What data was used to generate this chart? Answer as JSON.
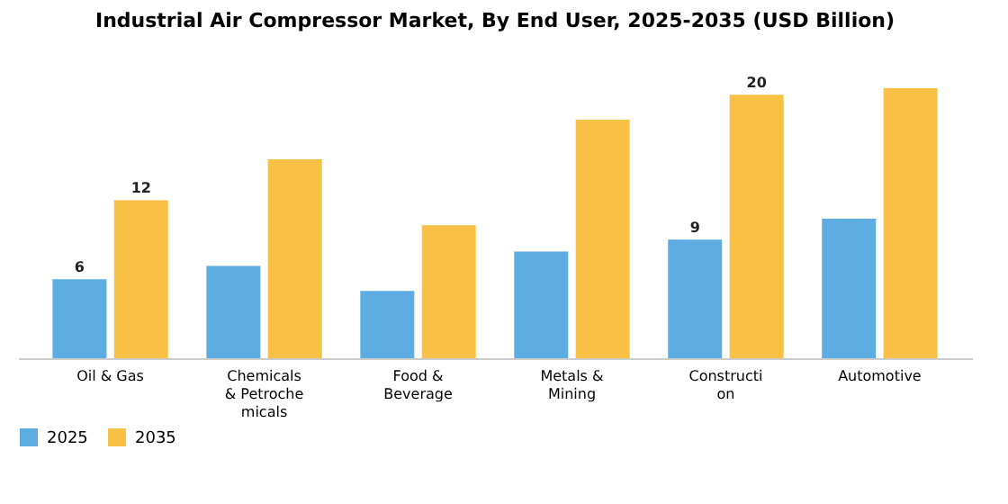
{
  "chart_data": {
    "type": "bar",
    "title": "Industrial Air Compressor Market, By End User, 2025-2035 (USD Billion)",
    "categories": [
      "Oil & Gas",
      "Chemicals & Petrochemicals",
      "Food & Beverage",
      "Metals & Mining",
      "Construction",
      "Automotive"
    ],
    "series": [
      {
        "name": "2025",
        "color": "#5dade2",
        "values": [
          6,
          7.0,
          5.1,
          8.1,
          9,
          10.6
        ],
        "value_labels": [
          "6",
          null,
          null,
          null,
          "9",
          null
        ]
      },
      {
        "name": "2035",
        "color": "#f8c146",
        "values": [
          12,
          15.1,
          10.1,
          18.1,
          20,
          20.5
        ],
        "value_labels": [
          "12",
          null,
          null,
          null,
          "20",
          null
        ]
      }
    ],
    "legend": "bottom",
    "tick_labels": "x"
  }
}
